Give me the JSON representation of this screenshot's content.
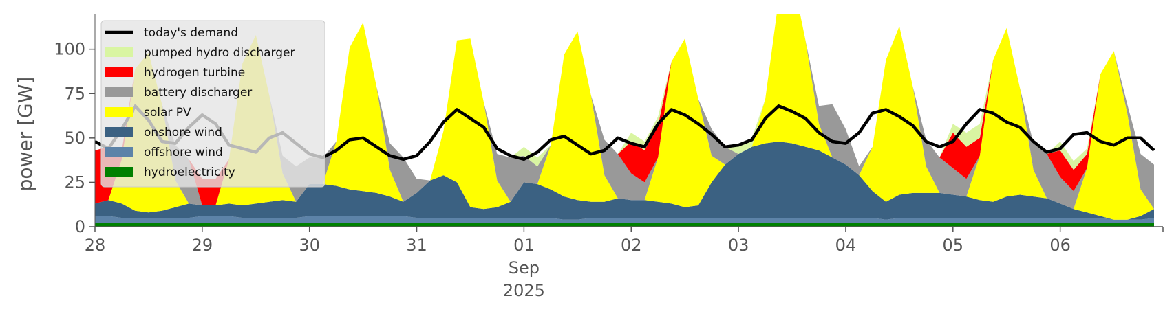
{
  "chart_data": {
    "type": "area",
    "title": "",
    "xlabel": "",
    "ylabel": "power [GW]",
    "ylim": [
      0,
      120
    ],
    "y_ticks": [
      "0",
      "25",
      "50",
      "75",
      "100"
    ],
    "x_ticks": [
      {
        "date": "2025-08-28",
        "label": "28",
        "sub": ""
      },
      {
        "date": "2025-08-29",
        "label": "29",
        "sub": ""
      },
      {
        "date": "2025-08-30",
        "label": "30",
        "sub": ""
      },
      {
        "date": "2025-08-31",
        "label": "31",
        "sub": ""
      },
      {
        "date": "2025-09-01",
        "label": "01",
        "sub": "Sep",
        "sub2": "2025"
      },
      {
        "date": "2025-09-02",
        "label": "02",
        "sub": ""
      },
      {
        "date": "2025-09-03",
        "label": "03",
        "sub": ""
      },
      {
        "date": "2025-09-04",
        "label": "04",
        "sub": ""
      },
      {
        "date": "2025-09-05",
        "label": "05",
        "sub": ""
      },
      {
        "date": "2025-09-06",
        "label": "06",
        "sub": ""
      }
    ],
    "xlim": [
      "2025-08-28 00:00",
      "2025-09-06 23:00"
    ],
    "grid": false,
    "legend_position": "top-left",
    "legend": [
      {
        "label": "today's demand",
        "kind": "line",
        "color": "#000000"
      },
      {
        "label": "pumped hydro discharger",
        "kind": "patch",
        "color": "#d9f5a2"
      },
      {
        "label": "hydrogen turbine",
        "kind": "patch",
        "color": "#ff0000"
      },
      {
        "label": "battery discharger",
        "kind": "patch",
        "color": "#999999"
      },
      {
        "label": "solar PV",
        "kind": "patch",
        "color": "#ffff00"
      },
      {
        "label": "onshore wind",
        "kind": "patch",
        "color": "#3b6182"
      },
      {
        "label": "offshore wind",
        "kind": "patch",
        "color": "#5d83a8"
      },
      {
        "label": "hydroelectricity",
        "kind": "patch",
        "color": "#008000"
      }
    ],
    "time_step_hours": 3,
    "series_stack_order": [
      "hydroelectricity",
      "offshore wind",
      "onshore wind",
      "solar PV",
      "battery discharger",
      "hydrogen turbine",
      "pumped hydro discharger"
    ],
    "series": [
      {
        "name": "hydroelectricity",
        "color": "#008000",
        "values": [
          2,
          2,
          2,
          2,
          2,
          2,
          2,
          2,
          2,
          2,
          2,
          2,
          2,
          2,
          2,
          2,
          2,
          2,
          2,
          2,
          2,
          2,
          2,
          2,
          2,
          2,
          2,
          2,
          2,
          2,
          2,
          2,
          2,
          2,
          2,
          2,
          2,
          2,
          2,
          2,
          2,
          2,
          2,
          2,
          2,
          2,
          2,
          2,
          2,
          2,
          2,
          2,
          2,
          2,
          2,
          2,
          2,
          2,
          2,
          2,
          2,
          2,
          2,
          2,
          2,
          2,
          2,
          2,
          2,
          2,
          2,
          2,
          2,
          2,
          2,
          2,
          2,
          2,
          2,
          2
        ]
      },
      {
        "name": "offshore wind",
        "color": "#5d83a8",
        "values": [
          4,
          4,
          3,
          3,
          3,
          3,
          3,
          3,
          4,
          4,
          4,
          3,
          3,
          3,
          3,
          3,
          4,
          4,
          4,
          4,
          4,
          4,
          4,
          4,
          3,
          3,
          3,
          3,
          3,
          3,
          3,
          3,
          3,
          3,
          3,
          2,
          2,
          3,
          3,
          3,
          3,
          3,
          3,
          3,
          3,
          3,
          3,
          3,
          3,
          3,
          3,
          3,
          3,
          3,
          3,
          3,
          3,
          3,
          3,
          2,
          3,
          3,
          3,
          3,
          3,
          3,
          3,
          3,
          3,
          3,
          3,
          3,
          3,
          3,
          3,
          3,
          2,
          2,
          2,
          3
        ]
      },
      {
        "name": "onshore wind",
        "color": "#3b6182",
        "values": [
          7,
          9,
          8,
          4,
          3,
          4,
          6,
          8,
          6,
          6,
          7,
          7,
          8,
          9,
          10,
          9,
          18,
          18,
          17,
          15,
          14,
          13,
          11,
          8,
          14,
          21,
          24,
          20,
          6,
          5,
          6,
          9,
          20,
          19,
          16,
          13,
          11,
          9,
          9,
          11,
          10,
          10,
          9,
          8,
          6,
          7,
          20,
          30,
          36,
          40,
          42,
          43,
          42,
          40,
          38,
          34,
          30,
          24,
          15,
          10,
          13,
          14,
          14,
          14,
          13,
          12,
          10,
          9,
          12,
          13,
          12,
          11,
          8,
          5,
          3,
          1,
          0,
          0,
          2,
          5
        ]
      },
      {
        "name": "solar PV",
        "color": "#ffff00",
        "values": [
          0,
          0,
          25,
          80,
          90,
          60,
          15,
          0,
          0,
          0,
          25,
          80,
          95,
          60,
          15,
          0,
          0,
          0,
          25,
          80,
          95,
          60,
          15,
          0,
          0,
          0,
          25,
          80,
          95,
          60,
          15,
          0,
          0,
          0,
          25,
          80,
          95,
          60,
          15,
          0,
          0,
          0,
          25,
          80,
          95,
          60,
          15,
          0,
          0,
          0,
          25,
          80,
          95,
          60,
          15,
          0,
          0,
          0,
          25,
          80,
          95,
          60,
          15,
          0,
          0,
          0,
          25,
          80,
          95,
          60,
          15,
          0,
          0,
          0,
          25,
          80,
          95,
          60,
          15,
          0
        ]
      },
      {
        "name": "battery discharger",
        "color": "#999999",
        "values": [
          0,
          0,
          0,
          0,
          0,
          0,
          20,
          25,
          0,
          0,
          0,
          0,
          0,
          0,
          10,
          20,
          15,
          15,
          0,
          0,
          0,
          0,
          15,
          25,
          8,
          0,
          0,
          0,
          0,
          0,
          15,
          25,
          15,
          10,
          0,
          0,
          0,
          0,
          20,
          25,
          15,
          10,
          0,
          0,
          0,
          0,
          15,
          10,
          0,
          0,
          0,
          0,
          0,
          0,
          10,
          30,
          20,
          5,
          0,
          0,
          0,
          0,
          15,
          20,
          15,
          10,
          0,
          0,
          0,
          0,
          15,
          25,
          15,
          10,
          0,
          0,
          0,
          5,
          20,
          25
        ]
      },
      {
        "name": "hydrogen turbine",
        "color": "#ff0000",
        "values": [
          30,
          30,
          5,
          0,
          0,
          0,
          0,
          0,
          15,
          15,
          0,
          0,
          0,
          0,
          0,
          0,
          0,
          0,
          0,
          0,
          0,
          0,
          0,
          0,
          0,
          0,
          0,
          0,
          0,
          0,
          0,
          0,
          0,
          0,
          0,
          0,
          0,
          0,
          0,
          0,
          18,
          18,
          18,
          0,
          0,
          0,
          0,
          0,
          0,
          0,
          0,
          0,
          0,
          0,
          0,
          0,
          0,
          0,
          0,
          0,
          0,
          0,
          0,
          0,
          20,
          18,
          10,
          0,
          0,
          0,
          0,
          0,
          15,
          12,
          8,
          0,
          0,
          0,
          0,
          0
        ]
      },
      {
        "name": "pumped hydro discharger",
        "color": "#d9f5a2",
        "values": [
          0,
          0,
          0,
          0,
          0,
          0,
          0,
          0,
          0,
          0,
          0,
          0,
          0,
          0,
          0,
          0,
          0,
          0,
          0,
          0,
          0,
          0,
          0,
          0,
          0,
          0,
          0,
          0,
          0,
          0,
          0,
          0,
          5,
          5,
          0,
          0,
          0,
          0,
          0,
          0,
          5,
          5,
          5,
          0,
          0,
          0,
          0,
          0,
          5,
          5,
          0,
          0,
          0,
          0,
          0,
          0,
          0,
          0,
          0,
          0,
          0,
          0,
          0,
          0,
          5,
          8,
          8,
          0,
          0,
          0,
          0,
          0,
          5,
          5,
          3,
          0,
          0,
          0,
          0,
          0
        ]
      },
      {
        "name": "today's demand",
        "color": "#000000",
        "values": [
          48,
          44,
          55,
          68,
          60,
          48,
          47,
          56,
          63,
          58,
          46,
          44,
          42,
          50,
          53,
          47,
          41,
          39,
          43,
          49,
          50,
          45,
          40,
          38,
          40,
          48,
          59,
          66,
          61,
          56,
          44,
          40,
          38,
          42,
          49,
          51,
          46,
          41,
          43,
          50,
          47,
          45,
          58,
          66,
          63,
          58,
          52,
          45,
          46,
          49,
          61,
          68,
          65,
          61,
          53,
          48,
          47,
          53,
          64,
          66,
          62,
          57,
          48,
          45,
          48,
          58,
          66,
          64,
          59,
          56,
          48,
          42,
          44,
          52,
          53,
          48,
          46,
          50,
          50,
          43
        ]
      }
    ]
  }
}
